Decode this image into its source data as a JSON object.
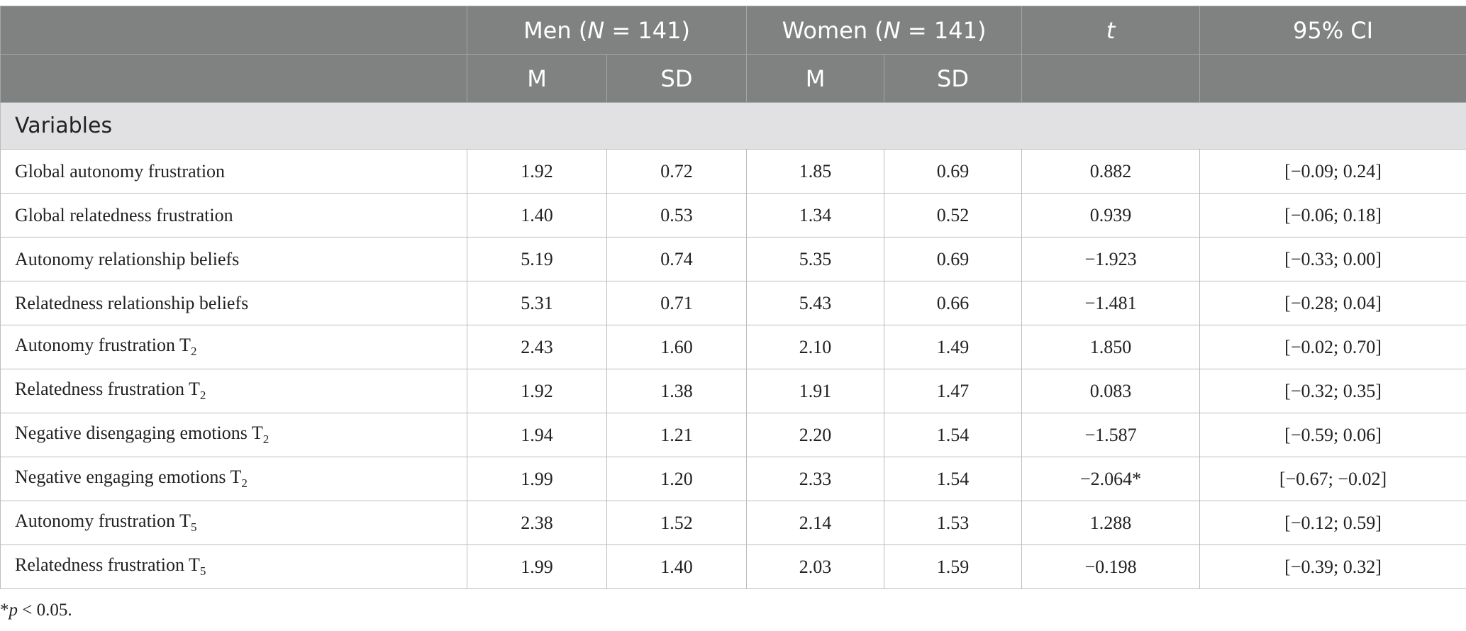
{
  "header": {
    "men_group": "Men (N = 141)",
    "men_pre": "Men (",
    "men_n": "N",
    "men_post": " = 141)",
    "women_pre": "Women (",
    "women_n": "N",
    "women_post": " = 141)",
    "t_label": "t",
    "ci_label": "95% CI",
    "sub_m": "M",
    "sub_sd": "SD"
  },
  "section_label": "Variables",
  "rows": [
    {
      "name": "Global autonomy frustration",
      "sub": "",
      "men_m": "1.92",
      "men_sd": "0.72",
      "women_m": "1.85",
      "women_sd": "0.69",
      "t": "0.882",
      "ci": "[−0.09; 0.24]"
    },
    {
      "name": "Global relatedness frustration",
      "sub": "",
      "men_m": "1.40",
      "men_sd": "0.53",
      "women_m": "1.34",
      "women_sd": "0.52",
      "t": "0.939",
      "ci": "[−0.06; 0.18]"
    },
    {
      "name": "Autonomy relationship beliefs",
      "sub": "",
      "men_m": "5.19",
      "men_sd": "0.74",
      "women_m": "5.35",
      "women_sd": "0.69",
      "t": "−1.923",
      "ci": "[−0.33; 0.00]"
    },
    {
      "name": "Relatedness relationship beliefs",
      "sub": "",
      "men_m": "5.31",
      "men_sd": "0.71",
      "women_m": "5.43",
      "women_sd": "0.66",
      "t": "−1.481",
      "ci": "[−0.28; 0.04]"
    },
    {
      "name": "Autonomy frustration T",
      "sub": "2",
      "men_m": "2.43",
      "men_sd": "1.60",
      "women_m": "2.10",
      "women_sd": "1.49",
      "t": "1.850",
      "ci": "[−0.02; 0.70]"
    },
    {
      "name": "Relatedness frustration T",
      "sub": "2",
      "men_m": "1.92",
      "men_sd": "1.38",
      "women_m": "1.91",
      "women_sd": "1.47",
      "t": "0.083",
      "ci": "[−0.32; 0.35]"
    },
    {
      "name": "Negative disengaging emotions T",
      "sub": "2",
      "men_m": "1.94",
      "men_sd": "1.21",
      "women_m": "2.20",
      "women_sd": "1.54",
      "t": "−1.587",
      "ci": "[−0.59; 0.06]"
    },
    {
      "name": "Negative engaging emotions T",
      "sub": "2",
      "men_m": "1.99",
      "men_sd": "1.20",
      "women_m": "2.33",
      "women_sd": "1.54",
      "t": "−2.064*",
      "ci": "[−0.67; −0.02]"
    },
    {
      "name": "Autonomy frustration T",
      "sub": "5",
      "men_m": "2.38",
      "men_sd": "1.52",
      "women_m": "2.14",
      "women_sd": "1.53",
      "t": "1.288",
      "ci": "[−0.12; 0.59]"
    },
    {
      "name": "Relatedness frustration T",
      "sub": "5",
      "men_m": "1.99",
      "men_sd": "1.40",
      "women_m": "2.03",
      "women_sd": "1.59",
      "t": "−0.198",
      "ci": "[−0.39; 0.32]"
    }
  ],
  "footnote": {
    "star": "*",
    "p": "p",
    "rest": " < 0.05."
  }
}
